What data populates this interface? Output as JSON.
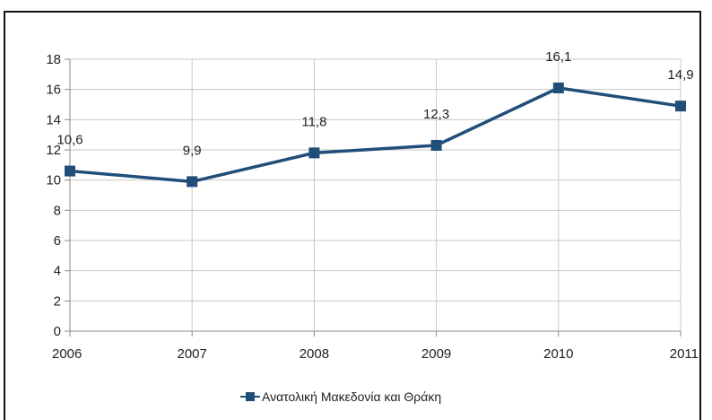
{
  "chart_data": {
    "type": "line",
    "title": "",
    "xlabel": "",
    "ylabel": "",
    "categories": [
      "2006",
      "2007",
      "2008",
      "2009",
      "2010",
      "2011"
    ],
    "series": [
      {
        "name": "Ανατολική Μακεδονία και Θράκη",
        "values": [
          10.6,
          9.9,
          11.8,
          12.3,
          16.1,
          14.9
        ],
        "data_labels": [
          "10,6",
          "9,9",
          "11,8",
          "12,3",
          "16,1",
          "14,9"
        ],
        "color": "#1f4e79",
        "marker": "square"
      }
    ],
    "ylim": [
      0,
      18
    ],
    "yticks": [
      "0",
      "2",
      "4",
      "6",
      "8",
      "10",
      "12",
      "14",
      "16",
      "18"
    ],
    "grid": true,
    "legend": "bottom"
  }
}
